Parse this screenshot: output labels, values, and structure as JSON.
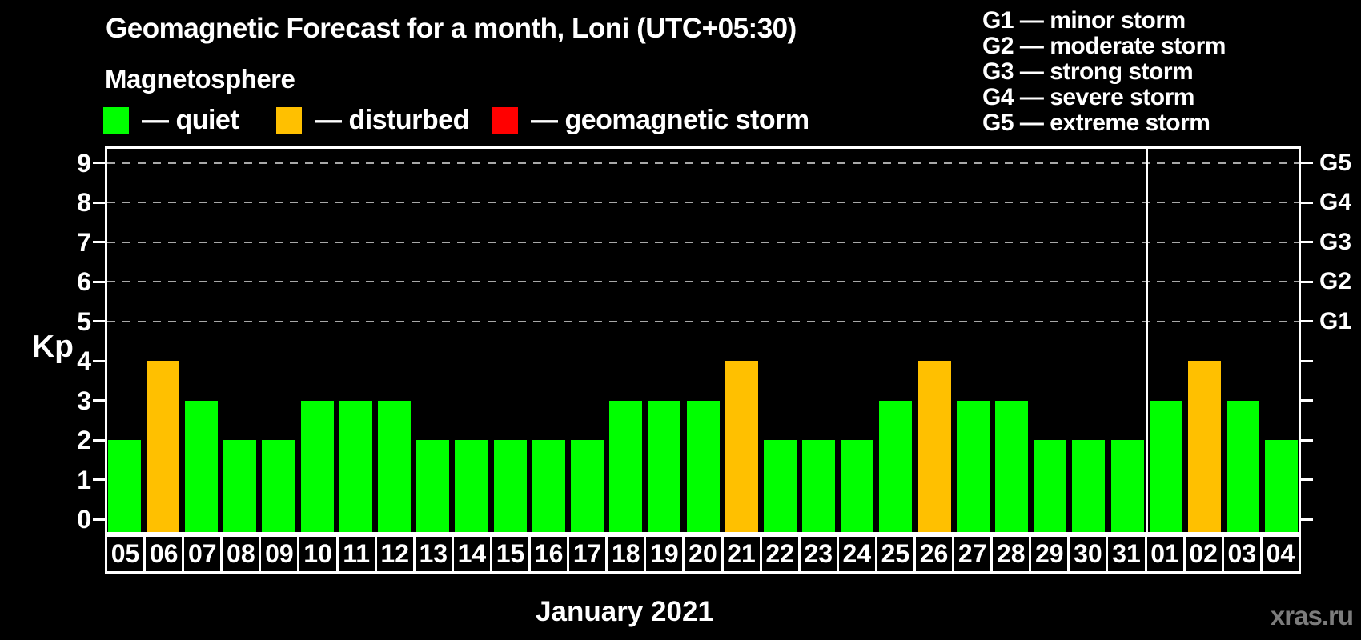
{
  "title": "Geomagnetic Forecast for a month, Loni (UTC+05:30)",
  "subtitle": "Magnetosphere",
  "legend": [
    {
      "name": "quiet",
      "label": "— quiet",
      "color": "#00ff00"
    },
    {
      "name": "disturbed",
      "label": "— disturbed",
      "color": "#ffc000"
    },
    {
      "name": "geomagnetic-storm",
      "label": "— geomagnetic storm",
      "color": "#ff0000"
    }
  ],
  "storm_scale": [
    "G1 — minor storm",
    "G2 — moderate storm",
    "G3 — strong storm",
    "G4 — severe storm",
    "G5 — extreme storm"
  ],
  "watermark": "xras.ru",
  "colors": {
    "background": "#000000",
    "text": "#ffffff",
    "quiet": "#00ff00",
    "disturbed": "#ffc000",
    "storm": "#ff0000",
    "grid": "#a8a8a8",
    "frame": "#ffffff",
    "watermark": "#7c7c7c"
  },
  "chart_data": {
    "type": "bar",
    "title": "Geomagnetic Forecast for a month, Loni (UTC+05:30)",
    "xlabel": "January 2021",
    "ylabel": "Kp",
    "ylim": [
      0,
      9.4
    ],
    "yticks": [
      0,
      1,
      2,
      3,
      4,
      5,
      6,
      7,
      8,
      9
    ],
    "gridlines_at_kp": [
      5,
      6,
      7,
      8,
      9
    ],
    "grid": "dashed-horizontal",
    "legend_position": "top-left",
    "right_axis": [
      {
        "label": "G1",
        "kp": 5
      },
      {
        "label": "G2",
        "kp": 6
      },
      {
        "label": "G3",
        "kp": 7
      },
      {
        "label": "G4",
        "kp": 8
      },
      {
        "label": "G5",
        "kp": 9
      }
    ],
    "categories": [
      "05",
      "06",
      "07",
      "08",
      "09",
      "10",
      "11",
      "12",
      "13",
      "14",
      "15",
      "16",
      "17",
      "18",
      "19",
      "20",
      "21",
      "22",
      "23",
      "24",
      "25",
      "26",
      "27",
      "28",
      "29",
      "30",
      "31",
      "01",
      "02",
      "03",
      "04"
    ],
    "values": [
      2,
      4,
      3,
      2,
      2,
      3,
      3,
      3,
      2,
      2,
      2,
      2,
      2,
      3,
      3,
      3,
      4,
      2,
      2,
      2,
      3,
      4,
      3,
      3,
      2,
      2,
      2,
      3,
      4,
      3,
      2
    ],
    "statuses": [
      "quiet",
      "disturbed",
      "quiet",
      "quiet",
      "quiet",
      "quiet",
      "quiet",
      "quiet",
      "quiet",
      "quiet",
      "quiet",
      "quiet",
      "quiet",
      "quiet",
      "quiet",
      "quiet",
      "disturbed",
      "quiet",
      "quiet",
      "quiet",
      "quiet",
      "disturbed",
      "quiet",
      "quiet",
      "quiet",
      "quiet",
      "quiet",
      "quiet",
      "disturbed",
      "quiet",
      "quiet"
    ],
    "month_divider_after_index": 26
  }
}
